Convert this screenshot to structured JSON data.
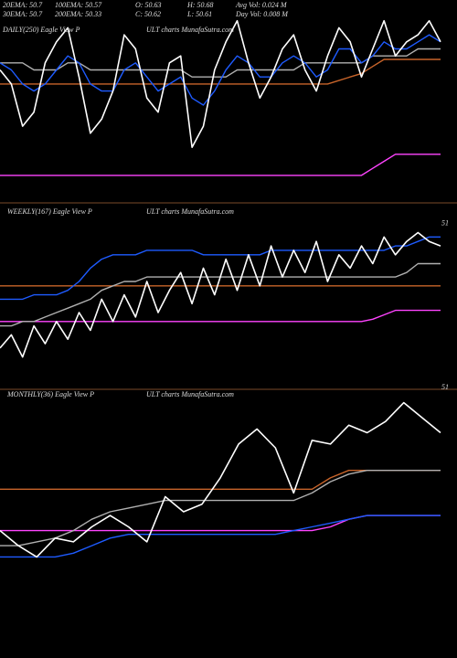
{
  "chart_data": [
    {
      "type": "line",
      "title": "DAILY(250) Eagle  View  P",
      "subtitle": "ULT charts MunafaSutra.com",
      "annotations": [
        [
          "20EMA: 50.7",
          "100EMA: 50.57",
          "O: 50.63",
          "H: 50.68",
          "Avg Vol: 0.024  M"
        ],
        [
          "30EMA: 50.7",
          "200EMA: 50.33",
          "C: 50.62",
          "L: 50.61",
          "Day Vol: 0.008  M"
        ]
      ],
      "ylim": [
        48.4,
        51.0
      ],
      "series": [
        {
          "color": "#ff44ff",
          "values": [
            48.7,
            48.7,
            48.7,
            48.7,
            48.7,
            48.7,
            48.7,
            48.7,
            48.7,
            48.7,
            48.7,
            48.7,
            48.7,
            48.7,
            48.7,
            48.7,
            48.7,
            48.7,
            48.7,
            48.7,
            48.7,
            48.7,
            48.7,
            48.7,
            48.7,
            48.7,
            48.7,
            48.7,
            48.7,
            48.7,
            48.7,
            48.7,
            48.7,
            48.8,
            48.9,
            49.0,
            49.0,
            49.0,
            49.0,
            49.0
          ]
        },
        {
          "color": "#c8642a",
          "values": [
            50.0,
            50.0,
            50.0,
            50.0,
            50.0,
            50.0,
            50.0,
            50.0,
            50.0,
            50.0,
            50.0,
            50.0,
            50.0,
            50.0,
            50.0,
            50.0,
            50.0,
            50.0,
            50.0,
            50.0,
            50.0,
            50.0,
            50.0,
            50.0,
            50.0,
            50.0,
            50.0,
            50.0,
            50.0,
            50.0,
            50.05,
            50.1,
            50.15,
            50.25,
            50.35,
            50.35,
            50.35,
            50.35,
            50.35,
            50.35
          ]
        },
        {
          "color": "#b0b0b0",
          "values": [
            50.3,
            50.3,
            50.3,
            50.2,
            50.2,
            50.2,
            50.3,
            50.3,
            50.2,
            50.2,
            50.2,
            50.2,
            50.2,
            50.2,
            50.2,
            50.2,
            50.2,
            50.1,
            50.1,
            50.1,
            50.1,
            50.2,
            50.2,
            50.2,
            50.2,
            50.2,
            50.2,
            50.3,
            50.3,
            50.3,
            50.3,
            50.3,
            50.3,
            50.4,
            50.4,
            50.4,
            50.4,
            50.5,
            50.5,
            50.5
          ]
        },
        {
          "color": "#1e5bff",
          "values": [
            50.3,
            50.2,
            50.0,
            49.9,
            50.0,
            50.2,
            50.4,
            50.3,
            50.0,
            49.9,
            49.9,
            50.2,
            50.3,
            50.1,
            49.9,
            50.0,
            50.1,
            49.8,
            49.7,
            49.9,
            50.2,
            50.4,
            50.3,
            50.1,
            50.1,
            50.3,
            50.4,
            50.3,
            50.1,
            50.2,
            50.5,
            50.5,
            50.3,
            50.4,
            50.6,
            50.5,
            50.5,
            50.6,
            50.7,
            50.6
          ]
        },
        {
          "color": "#ffffff",
          "values": [
            50.2,
            50.0,
            49.4,
            49.6,
            50.3,
            50.6,
            50.8,
            50.1,
            49.3,
            49.5,
            49.9,
            50.7,
            50.5,
            49.8,
            49.6,
            50.3,
            50.4,
            49.1,
            49.4,
            50.2,
            50.6,
            50.9,
            50.3,
            49.8,
            50.1,
            50.5,
            50.7,
            50.2,
            49.9,
            50.4,
            50.8,
            50.6,
            50.1,
            50.5,
            50.9,
            50.4,
            50.6,
            50.7,
            50.9,
            50.6
          ]
        }
      ]
    },
    {
      "type": "line",
      "title": "WEEKLY(167) Eagle  View  P",
      "subtitle": "ULT charts MunafaSutra.com",
      "ylim": [
        47.5,
        51.2
      ],
      "yticks": [
        51
      ],
      "series": [
        {
          "color": "#ff44ff",
          "values": [
            48.8,
            48.8,
            48.8,
            48.8,
            48.8,
            48.8,
            48.8,
            48.8,
            48.8,
            48.8,
            48.8,
            48.8,
            48.8,
            48.8,
            48.8,
            48.8,
            48.8,
            48.8,
            48.8,
            48.8,
            48.8,
            48.8,
            48.8,
            48.8,
            48.8,
            48.8,
            48.8,
            48.8,
            48.8,
            48.8,
            48.8,
            48.8,
            48.8,
            48.85,
            48.95,
            49.05,
            49.05,
            49.05,
            49.05,
            49.05
          ]
        },
        {
          "color": "#c8642a",
          "values": [
            49.6,
            49.6,
            49.6,
            49.6,
            49.6,
            49.6,
            49.6,
            49.6,
            49.6,
            49.6,
            49.6,
            49.6,
            49.6,
            49.6,
            49.6,
            49.6,
            49.6,
            49.6,
            49.6,
            49.6,
            49.6,
            49.6,
            49.6,
            49.6,
            49.6,
            49.6,
            49.6,
            49.6,
            49.6,
            49.6,
            49.6,
            49.6,
            49.6,
            49.6,
            49.6,
            49.6,
            49.6,
            49.6,
            49.6,
            49.6
          ]
        },
        {
          "color": "#b0b0b0",
          "values": [
            48.7,
            48.7,
            48.8,
            48.8,
            48.9,
            49.0,
            49.1,
            49.2,
            49.3,
            49.5,
            49.6,
            49.7,
            49.7,
            49.8,
            49.8,
            49.8,
            49.8,
            49.8,
            49.8,
            49.8,
            49.8,
            49.8,
            49.8,
            49.8,
            49.8,
            49.8,
            49.8,
            49.8,
            49.8,
            49.8,
            49.8,
            49.8,
            49.8,
            49.8,
            49.8,
            49.8,
            49.9,
            50.1,
            50.1,
            50.1
          ]
        },
        {
          "color": "#1e5bff",
          "values": [
            49.3,
            49.3,
            49.3,
            49.4,
            49.4,
            49.4,
            49.5,
            49.7,
            50.0,
            50.2,
            50.3,
            50.3,
            50.3,
            50.4,
            50.4,
            50.4,
            50.4,
            50.4,
            50.3,
            50.3,
            50.3,
            50.3,
            50.3,
            50.3,
            50.4,
            50.4,
            50.4,
            50.4,
            50.4,
            50.4,
            50.4,
            50.4,
            50.4,
            50.4,
            50.4,
            50.5,
            50.5,
            50.6,
            50.7,
            50.7
          ]
        },
        {
          "color": "#ffffff",
          "values": [
            48.2,
            48.5,
            48.0,
            48.7,
            48.3,
            48.8,
            48.4,
            49.0,
            48.6,
            49.3,
            48.8,
            49.4,
            48.9,
            49.7,
            49.0,
            49.5,
            49.9,
            49.2,
            50.0,
            49.4,
            50.2,
            49.5,
            50.3,
            49.6,
            50.5,
            49.8,
            50.4,
            49.9,
            50.6,
            49.7,
            50.3,
            50.0,
            50.5,
            50.1,
            50.7,
            50.3,
            50.6,
            50.8,
            50.6,
            50.5
          ]
        }
      ]
    },
    {
      "type": "line",
      "title": "MONTHLY(36) Eagle  View  P",
      "subtitle": "ULT charts MunafaSutra.com",
      "ylim": [
        46.0,
        51.1
      ],
      "yticks": [
        51
      ],
      "series": [
        {
          "color": "#ff44ff",
          "values": [
            47.2,
            47.2,
            47.2,
            47.2,
            47.2,
            47.2,
            47.2,
            47.2,
            47.2,
            47.2,
            47.2,
            47.2,
            47.2,
            47.2,
            47.2,
            47.2,
            47.2,
            47.2,
            47.3,
            47.5,
            47.6,
            47.6,
            47.6,
            47.6,
            47.6
          ]
        },
        {
          "color": "#c8642a",
          "values": [
            48.3,
            48.3,
            48.3,
            48.3,
            48.3,
            48.3,
            48.3,
            48.3,
            48.3,
            48.3,
            48.3,
            48.3,
            48.3,
            48.3,
            48.3,
            48.3,
            48.3,
            48.3,
            48.6,
            48.8,
            48.8,
            48.8,
            48.8,
            48.8,
            48.8
          ]
        },
        {
          "color": "#b0b0b0",
          "values": [
            46.8,
            46.8,
            46.9,
            47.0,
            47.2,
            47.5,
            47.7,
            47.8,
            47.9,
            48.0,
            48.0,
            48.0,
            48.0,
            48.0,
            48.0,
            48.0,
            48.0,
            48.2,
            48.5,
            48.7,
            48.8,
            48.8,
            48.8,
            48.8,
            48.8
          ]
        },
        {
          "color": "#1e5bff",
          "values": [
            46.5,
            46.5,
            46.5,
            46.5,
            46.6,
            46.8,
            47.0,
            47.1,
            47.1,
            47.1,
            47.1,
            47.1,
            47.1,
            47.1,
            47.1,
            47.1,
            47.2,
            47.3,
            47.4,
            47.5,
            47.6,
            47.6,
            47.6,
            47.6,
            47.6
          ]
        },
        {
          "color": "#ffffff",
          "values": [
            47.2,
            46.8,
            46.5,
            47.0,
            46.9,
            47.3,
            47.6,
            47.3,
            46.9,
            48.1,
            47.7,
            47.9,
            48.6,
            49.5,
            49.9,
            49.4,
            48.2,
            49.6,
            49.5,
            50.0,
            49.8,
            50.1,
            50.6,
            50.2,
            49.8
          ]
        }
      ]
    }
  ]
}
